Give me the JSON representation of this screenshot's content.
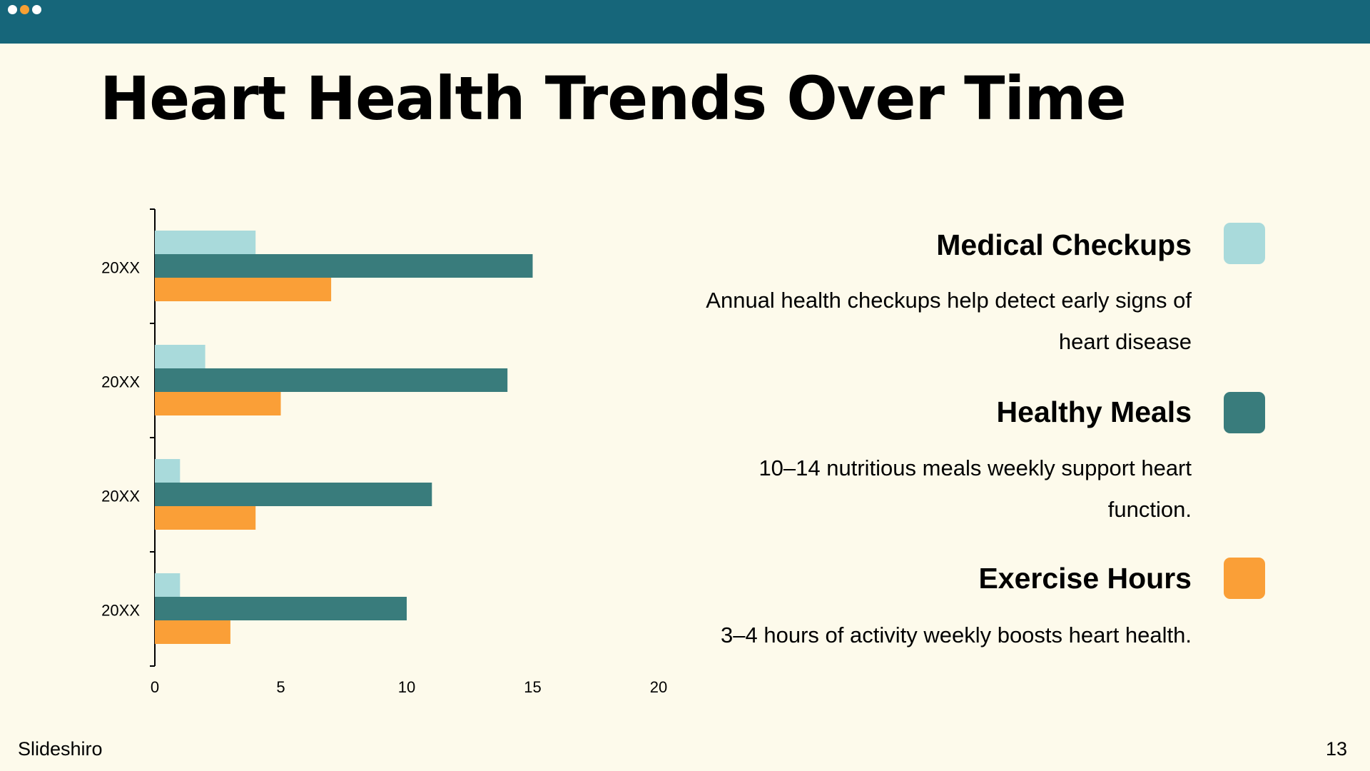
{
  "colors": {
    "top_bar": "#16667a",
    "background": "#fdfaeb",
    "dots": [
      "#ffffff",
      "#f9a033",
      "#ffffff"
    ]
  },
  "slide": {
    "title": "Heart Health Trends Over Time",
    "brand": "Slideshiro",
    "page_number": "13"
  },
  "legend": [
    {
      "title": "Medical Checkups",
      "description": "Annual health checkups help detect early signs of heart disease",
      "color": "#a9dadb"
    },
    {
      "title": "Healthy Meals",
      "description": "10–14 nutritious meals weekly support heart function.",
      "color": "#397c7c"
    },
    {
      "title": "Exercise Hours",
      "description": "3–4 hours of activity weekly boosts heart health.",
      "color": "#fa9f37"
    }
  ],
  "chart_data": {
    "type": "bar",
    "orientation": "horizontal",
    "categories": [
      "20XX",
      "20XX",
      "20XX",
      "20XX"
    ],
    "series": [
      {
        "name": "Medical Checkups",
        "values": [
          4,
          2,
          1,
          1
        ],
        "color": "#a9dadb"
      },
      {
        "name": "Healthy Meals",
        "values": [
          15,
          14,
          11,
          10
        ],
        "color": "#397c7c"
      },
      {
        "name": "Exercise Hours",
        "values": [
          7,
          5,
          4,
          3
        ],
        "color": "#fa9f37"
      }
    ],
    "x_ticks": [
      0,
      5,
      10,
      15,
      20
    ],
    "xlim": [
      0,
      20
    ],
    "grid": false,
    "legend_position": "right"
  }
}
